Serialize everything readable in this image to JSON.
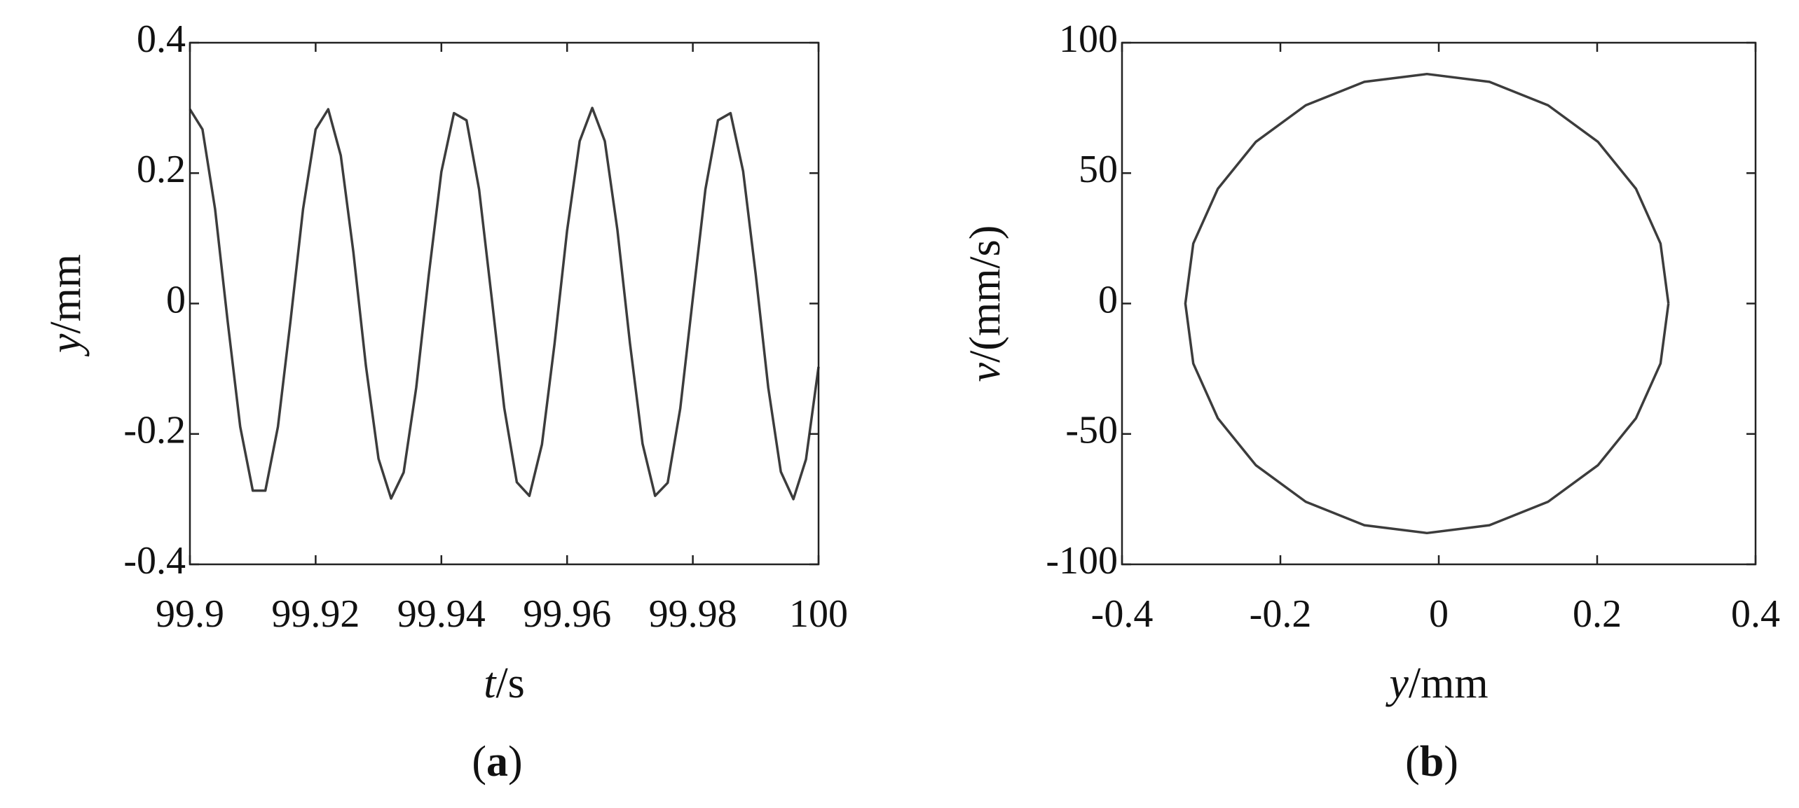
{
  "chart_data": [
    {
      "type": "line",
      "xlabel_parts": [
        "t",
        "/s"
      ],
      "ylabel_parts": [
        "y",
        "/mm"
      ],
      "panel_label_parts": [
        "(",
        "a",
        ")"
      ],
      "xlim": [
        99.9,
        100
      ],
      "xticks": [
        99.9,
        99.92,
        99.94,
        99.96,
        99.98,
        100
      ],
      "ylim": [
        -0.4,
        0.4
      ],
      "yticks": [
        -0.4,
        -0.2,
        0,
        0.2,
        0.4
      ],
      "series": [
        {
          "color": "#3c3c3c",
          "x": [
            99.9,
            99.902,
            99.904,
            99.906,
            99.908,
            99.91,
            99.912,
            99.914,
            99.916,
            99.918,
            99.92,
            99.922,
            99.924,
            99.926,
            99.928,
            99.93,
            99.932,
            99.934,
            99.936,
            99.938,
            99.94,
            99.942,
            99.944,
            99.946,
            99.948,
            99.95,
            99.952,
            99.954,
            99.956,
            99.958,
            99.96,
            99.962,
            99.964,
            99.966,
            99.968,
            99.97,
            99.972,
            99.974,
            99.976,
            99.978,
            99.98,
            99.982,
            99.984,
            99.986,
            99.988,
            99.99,
            99.992,
            99.994,
            99.996,
            99.998,
            100
          ],
          "values": [
            0.298,
            0.267,
            0.145,
            -0.027,
            -0.189,
            -0.287,
            -0.287,
            -0.189,
            -0.027,
            0.145,
            0.267,
            0.298,
            0.227,
            0.079,
            -0.096,
            -0.238,
            -0.299,
            -0.259,
            -0.129,
            0.044,
            0.202,
            0.292,
            0.281,
            0.175,
            0.009,
            -0.16,
            -0.274,
            -0.295,
            -0.216,
            -0.062,
            0.112,
            0.249,
            0.3,
            0.249,
            0.113,
            -0.061,
            -0.215,
            -0.295,
            -0.275,
            -0.161,
            0.008,
            0.175,
            0.281,
            0.292,
            0.203,
            0.045,
            -0.129,
            -0.258,
            -0.3,
            -0.239,
            -0.097
          ]
        }
      ]
    },
    {
      "type": "line",
      "xlabel_parts": [
        "y",
        "/mm"
      ],
      "ylabel_parts": [
        "v",
        "/(mm/s)"
      ],
      "panel_label_parts": [
        "(",
        "b",
        ")"
      ],
      "xlim": [
        -0.4,
        0.4
      ],
      "xticks": [
        -0.4,
        -0.2,
        0,
        0.2,
        0.4
      ],
      "ylim": [
        -100,
        100
      ],
      "yticks": [
        -100,
        -50,
        0,
        50,
        100
      ],
      "series": [
        {
          "color": "#3c3c3c",
          "x": [
            0.29,
            0.28,
            0.249,
            0.201,
            0.138,
            0.064,
            -0.015,
            -0.094,
            -0.168,
            -0.231,
            -0.279,
            -0.31,
            -0.32,
            -0.31,
            -0.279,
            -0.231,
            -0.168,
            -0.094,
            -0.015,
            0.064,
            0.138,
            0.201,
            0.249,
            0.28,
            0.29
          ],
          "values": [
            0,
            -23,
            -44,
            -62,
            -76,
            -85,
            -88,
            -85,
            -76,
            -62,
            -44,
            -23,
            0,
            23,
            44,
            62,
            76,
            85,
            88,
            85,
            76,
            62,
            44,
            23,
            0
          ]
        }
      ]
    }
  ]
}
